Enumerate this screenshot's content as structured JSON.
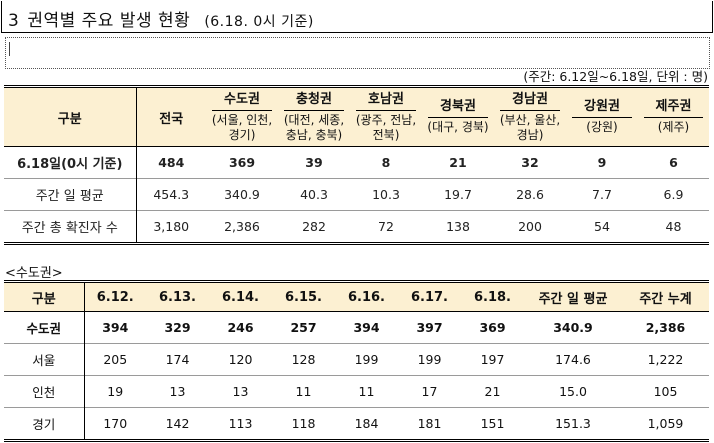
{
  "title": {
    "number": "3",
    "text": "권역별 주요 발생 현황",
    "basis": "(6.18. 0시 기준)"
  },
  "unit_note": "(주간: 6.12일~6.18일, 단위 : 명)",
  "table1": {
    "corner": "구분",
    "national": "전국",
    "regions": [
      {
        "name": "수도권",
        "sub": "(서울, 인천, 경기)"
      },
      {
        "name": "충청권",
        "sub": "(대전, 세종, 충남, 충북)"
      },
      {
        "name": "호남권",
        "sub": "(광주, 전남, 전북)"
      },
      {
        "name": "경북권",
        "sub": "(대구, 경북)"
      },
      {
        "name": "경남권",
        "sub": "(부산, 울산, 경남)"
      },
      {
        "name": "강원권",
        "sub": "(강원)"
      },
      {
        "name": "제주권",
        "sub": "(제주)"
      }
    ],
    "rows": [
      {
        "label": "6.18일(0시 기준)",
        "values": [
          "484",
          "369",
          "39",
          "8",
          "21",
          "32",
          "9",
          "6"
        ]
      },
      {
        "label": "주간 일 평균",
        "values": [
          "454.3",
          "340.9",
          "40.3",
          "10.3",
          "19.7",
          "28.6",
          "7.7",
          "6.9"
        ]
      },
      {
        "label": "주간 총 확진자 수",
        "values": [
          "3,180",
          "2,386",
          "282",
          "72",
          "138",
          "200",
          "54",
          "48"
        ]
      }
    ]
  },
  "section_label": "<수도권>",
  "table2": {
    "headers": [
      "구분",
      "6.12.",
      "6.13.",
      "6.14.",
      "6.15.",
      "6.16.",
      "6.17.",
      "6.18.",
      "주간 일 평균",
      "주간 누계"
    ],
    "rows": [
      {
        "label": "수도권",
        "values": [
          "394",
          "329",
          "246",
          "257",
          "394",
          "397",
          "369",
          "340.9",
          "2,386"
        ]
      },
      {
        "label": "서울",
        "values": [
          "205",
          "174",
          "120",
          "128",
          "199",
          "199",
          "197",
          "174.6",
          "1,222"
        ]
      },
      {
        "label": "인천",
        "values": [
          "19",
          "13",
          "13",
          "11",
          "11",
          "17",
          "21",
          "15.0",
          "105"
        ]
      },
      {
        "label": "경기",
        "values": [
          "170",
          "142",
          "113",
          "118",
          "184",
          "181",
          "151",
          "151.3",
          "1,059"
        ]
      }
    ]
  }
}
